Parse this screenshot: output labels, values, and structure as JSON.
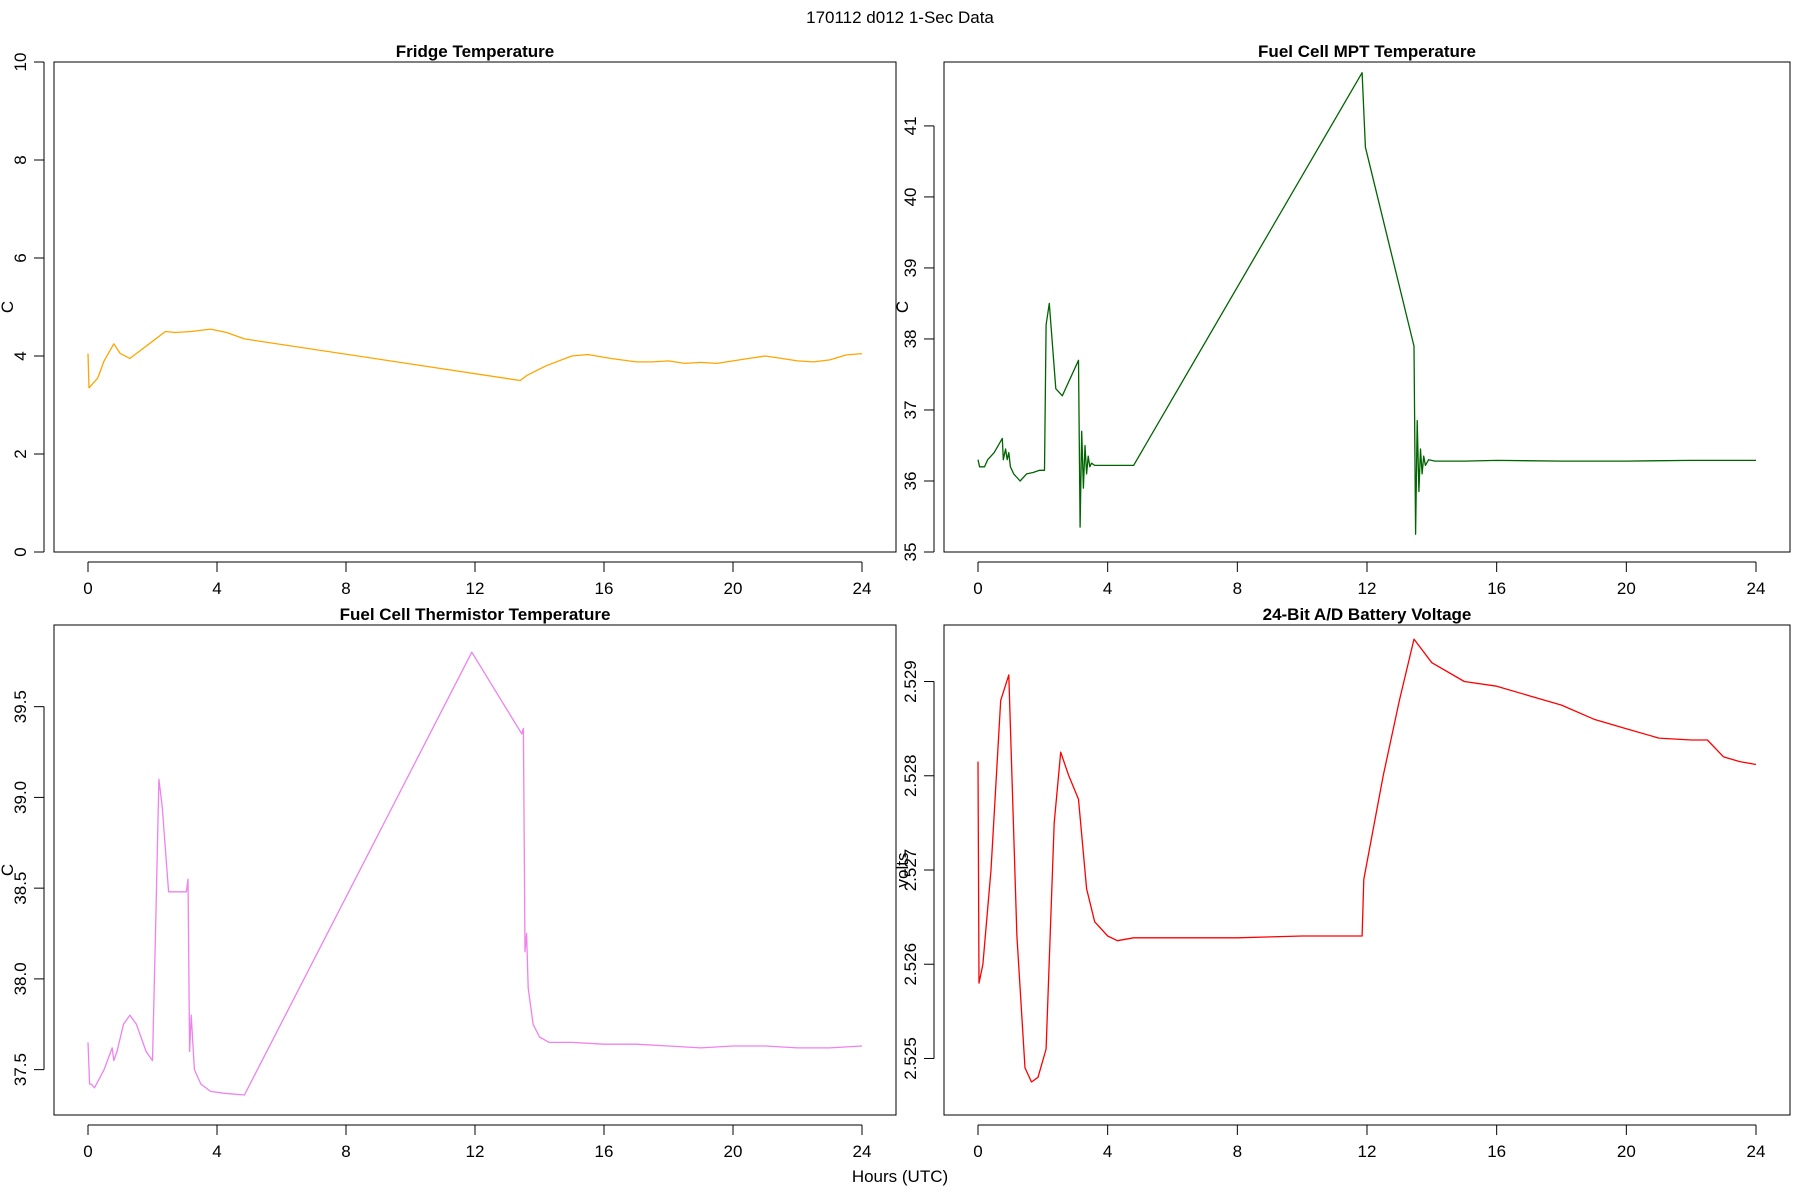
{
  "figure": {
    "title": "170112   d012   1-Sec Data",
    "xlabel": "Hours (UTC)"
  },
  "chart_data": [
    {
      "type": "line",
      "title": "Fridge Temperature",
      "xlabel": "Hours (UTC)",
      "ylabel": "C",
      "color": "#ffa500",
      "xlim": [
        0,
        24
      ],
      "ylim": [
        0,
        10
      ],
      "xticks": [
        0,
        4,
        8,
        12,
        16,
        20,
        24
      ],
      "yticks": [
        0,
        2,
        4,
        6,
        8,
        10
      ],
      "ytick_labels": [
        "0",
        "2",
        "4",
        "6",
        "8",
        "10"
      ],
      "x": [
        0,
        0.03,
        0.1,
        0.3,
        0.5,
        0.8,
        1.0,
        1.3,
        1.6,
        2.0,
        2.4,
        2.7,
        3.2,
        3.8,
        4.3,
        4.85,
        13.4,
        13.6,
        14.2,
        15.0,
        15.5,
        16.2,
        17.0,
        17.5,
        18.0,
        18.5,
        19.0,
        19.5,
        20.0,
        20.5,
        21.0,
        21.5,
        22.0,
        22.5,
        23.0,
        23.5,
        24.0
      ],
      "y": [
        4.05,
        3.35,
        3.4,
        3.55,
        3.9,
        4.25,
        4.05,
        3.95,
        4.1,
        4.3,
        4.5,
        4.48,
        4.5,
        4.55,
        4.48,
        4.35,
        3.5,
        3.6,
        3.8,
        4.0,
        4.03,
        3.95,
        3.88,
        3.88,
        3.9,
        3.85,
        3.87,
        3.85,
        3.9,
        3.95,
        4.0,
        3.95,
        3.9,
        3.88,
        3.92,
        4.02,
        4.05
      ]
    },
    {
      "type": "line",
      "title": "Fuel Cell MPT Temperature",
      "xlabel": "Hours (UTC)",
      "ylabel": "C",
      "color": "#006400",
      "xlim": [
        0,
        24
      ],
      "ylim": [
        35,
        41.9
      ],
      "xticks": [
        0,
        4,
        8,
        12,
        16,
        20,
        24
      ],
      "yticks": [
        35,
        36,
        37,
        38,
        39,
        40,
        41
      ],
      "ytick_labels": [
        "35",
        "36",
        "37",
        "38",
        "39",
        "40",
        "41"
      ],
      "x": [
        0,
        0.05,
        0.1,
        0.2,
        0.3,
        0.5,
        0.75,
        0.78,
        0.85,
        0.9,
        0.95,
        1.0,
        1.1,
        1.3,
        1.5,
        1.7,
        1.9,
        2.05,
        2.1,
        2.2,
        2.4,
        2.6,
        3.1,
        3.15,
        3.2,
        3.25,
        3.3,
        3.35,
        3.4,
        3.45,
        3.5,
        3.6,
        3.8,
        4.2,
        4.8,
        11.85,
        11.95,
        13.45,
        13.5,
        13.55,
        13.6,
        13.65,
        13.7,
        13.75,
        13.8,
        13.9,
        14.1,
        15.0,
        16.0,
        18.0,
        20.0,
        22.0,
        24.0
      ],
      "y": [
        36.3,
        36.2,
        36.2,
        36.2,
        36.3,
        36.4,
        36.6,
        36.3,
        36.45,
        36.3,
        36.4,
        36.2,
        36.1,
        36.0,
        36.1,
        36.12,
        36.15,
        36.15,
        38.2,
        38.5,
        37.3,
        37.2,
        37.7,
        35.35,
        36.7,
        35.9,
        36.5,
        36.1,
        36.35,
        36.2,
        36.25,
        36.22,
        36.22,
        36.22,
        36.22,
        41.75,
        40.7,
        37.9,
        35.25,
        36.85,
        35.85,
        36.45,
        36.1,
        36.35,
        36.22,
        36.3,
        36.28,
        36.28,
        36.29,
        36.28,
        36.28,
        36.29,
        36.29
      ]
    },
    {
      "type": "line",
      "title": "Fuel Cell Thermistor Temperature",
      "xlabel": "Hours (UTC)",
      "ylabel": "C",
      "color": "#ee82ee",
      "xlim": [
        0,
        24
      ],
      "ylim": [
        37.25,
        39.95
      ],
      "xticks": [
        0,
        4,
        8,
        12,
        16,
        20,
        24
      ],
      "yticks": [
        37.5,
        38.0,
        38.5,
        39.0,
        39.5
      ],
      "ytick_labels": [
        "37.5",
        "38.0",
        "38.5",
        "39.0",
        "39.5"
      ],
      "x": [
        0,
        0.05,
        0.1,
        0.2,
        0.5,
        0.75,
        0.8,
        0.9,
        1.1,
        1.3,
        1.5,
        1.8,
        2.0,
        2.1,
        2.2,
        2.3,
        2.5,
        3.05,
        3.1,
        3.15,
        3.2,
        3.3,
        3.5,
        3.8,
        4.2,
        4.85,
        11.9,
        13.45,
        13.5,
        13.55,
        13.6,
        13.65,
        13.8,
        14.0,
        14.3,
        15.0,
        16.0,
        17.0,
        18.0,
        19.0,
        20.0,
        21.0,
        22.0,
        23.0,
        24.0
      ],
      "y": [
        37.65,
        37.42,
        37.42,
        37.4,
        37.5,
        37.62,
        37.55,
        37.6,
        37.75,
        37.8,
        37.75,
        37.6,
        37.55,
        38.3,
        39.1,
        38.95,
        38.48,
        38.48,
        38.55,
        37.6,
        37.8,
        37.5,
        37.42,
        37.38,
        37.37,
        37.36,
        39.8,
        39.35,
        39.38,
        38.15,
        38.25,
        37.95,
        37.75,
        37.68,
        37.65,
        37.65,
        37.64,
        37.64,
        37.63,
        37.62,
        37.63,
        37.63,
        37.62,
        37.62,
        37.63
      ]
    },
    {
      "type": "line",
      "title": "24-Bit A/D Battery Voltage",
      "xlabel": "Hours (UTC)",
      "ylabel": "volts",
      "color": "#ff0000",
      "xlim": [
        0,
        24
      ],
      "ylim": [
        2.5244,
        2.5296
      ],
      "xticks": [
        0,
        4,
        8,
        12,
        16,
        20,
        24
      ],
      "yticks": [
        2.525,
        2.526,
        2.527,
        2.528,
        2.529
      ],
      "ytick_labels": [
        "2.525",
        "2.526",
        "2.527",
        "2.528",
        "2.529"
      ],
      "x": [
        0,
        0.03,
        0.15,
        0.4,
        0.7,
        0.95,
        1.2,
        1.45,
        1.65,
        1.85,
        2.1,
        2.35,
        2.55,
        2.8,
        3.1,
        3.35,
        3.6,
        4.0,
        4.3,
        4.8,
        6.0,
        8.0,
        10.0,
        11.85,
        11.9,
        12.5,
        13.0,
        13.45,
        14.0,
        15.0,
        16.0,
        17.0,
        18.0,
        19.0,
        20.0,
        21.0,
        22.0,
        22.5,
        23.0,
        23.5,
        24.0
      ],
      "y": [
        2.52815,
        2.5258,
        2.526,
        2.527,
        2.5288,
        2.52907,
        2.5263,
        2.5249,
        2.52475,
        2.5248,
        2.5251,
        2.5275,
        2.52825,
        2.528,
        2.52775,
        2.5268,
        2.52645,
        2.5263,
        2.52625,
        2.52628,
        2.52628,
        2.52628,
        2.5263,
        2.5263,
        2.5269,
        2.528,
        2.5288,
        2.52945,
        2.5292,
        2.529,
        2.52895,
        2.52885,
        2.52875,
        2.5286,
        2.5285,
        2.5284,
        2.52838,
        2.52838,
        2.5282,
        2.52815,
        2.52812
      ]
    }
  ]
}
